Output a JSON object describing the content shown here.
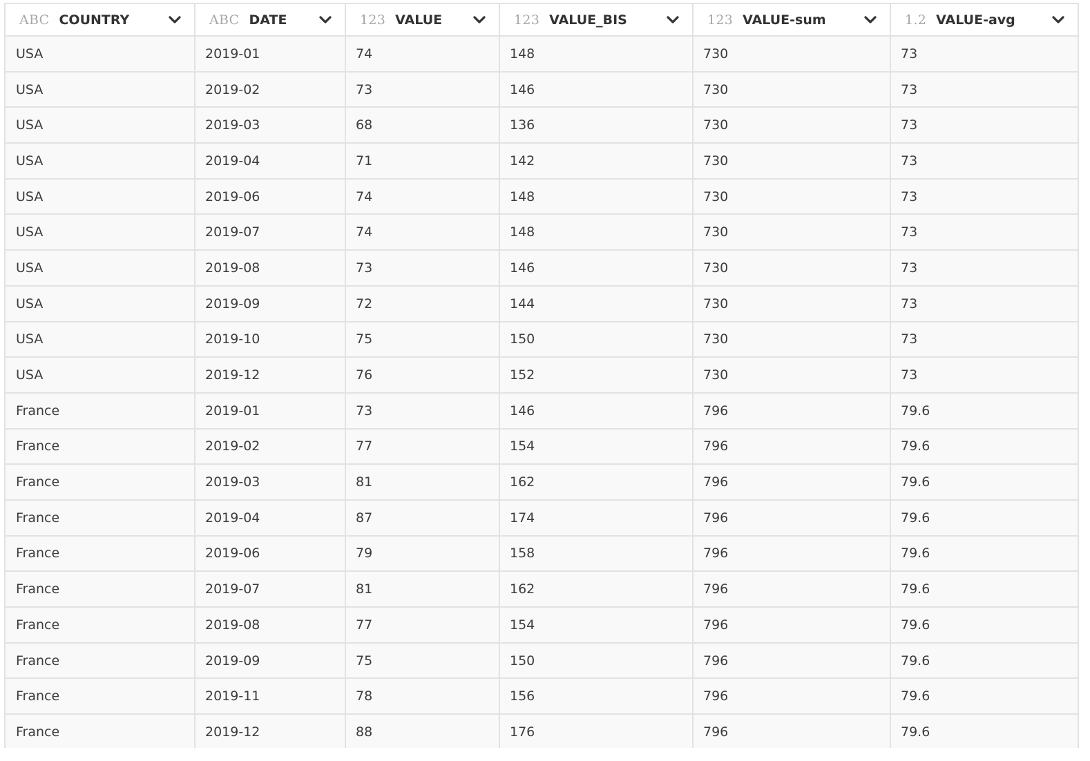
{
  "columns": [
    {
      "type": "ABC",
      "name": "COUNTRY"
    },
    {
      "type": "ABC",
      "name": "DATE"
    },
    {
      "type": "123",
      "name": "VALUE"
    },
    {
      "type": "123",
      "name": "VALUE_BIS"
    },
    {
      "type": "123",
      "name": "VALUE-sum"
    },
    {
      "type": "1.2",
      "name": "VALUE-avg"
    }
  ],
  "rows": [
    [
      "USA",
      "2019-01",
      "74",
      "148",
      "730",
      "73"
    ],
    [
      "USA",
      "2019-02",
      "73",
      "146",
      "730",
      "73"
    ],
    [
      "USA",
      "2019-03",
      "68",
      "136",
      "730",
      "73"
    ],
    [
      "USA",
      "2019-04",
      "71",
      "142",
      "730",
      "73"
    ],
    [
      "USA",
      "2019-06",
      "74",
      "148",
      "730",
      "73"
    ],
    [
      "USA",
      "2019-07",
      "74",
      "148",
      "730",
      "73"
    ],
    [
      "USA",
      "2019-08",
      "73",
      "146",
      "730",
      "73"
    ],
    [
      "USA",
      "2019-09",
      "72",
      "144",
      "730",
      "73"
    ],
    [
      "USA",
      "2019-10",
      "75",
      "150",
      "730",
      "73"
    ],
    [
      "USA",
      "2019-12",
      "76",
      "152",
      "730",
      "73"
    ],
    [
      "France",
      "2019-01",
      "73",
      "146",
      "796",
      "79.6"
    ],
    [
      "France",
      "2019-02",
      "77",
      "154",
      "796",
      "79.6"
    ],
    [
      "France",
      "2019-03",
      "81",
      "162",
      "796",
      "79.6"
    ],
    [
      "France",
      "2019-04",
      "87",
      "174",
      "796",
      "79.6"
    ],
    [
      "France",
      "2019-06",
      "79",
      "158",
      "796",
      "79.6"
    ],
    [
      "France",
      "2019-07",
      "81",
      "162",
      "796",
      "79.6"
    ],
    [
      "France",
      "2019-08",
      "77",
      "154",
      "796",
      "79.6"
    ],
    [
      "France",
      "2019-09",
      "75",
      "150",
      "796",
      "79.6"
    ],
    [
      "France",
      "2019-11",
      "78",
      "156",
      "796",
      "79.6"
    ],
    [
      "France",
      "2019-12",
      "88",
      "176",
      "796",
      "79.6"
    ]
  ],
  "icons": {
    "column_menu": "chevron-down-icon"
  },
  "colors": {
    "header_text": "#333333",
    "type_label": "#a7a7a7",
    "cell_background": "#f9f9f9",
    "cell_text": "#3d3d3d",
    "grid_line": "#e2e2e2"
  }
}
